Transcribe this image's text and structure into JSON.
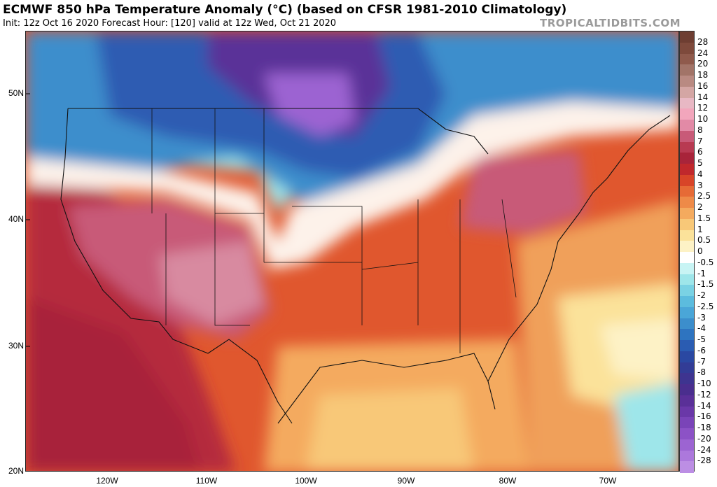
{
  "title": "ECMWF 850 hPa Temperature Anomaly (°C) (based on CFSR 1981-2010 Climatology)",
  "subtitle": "Init: 12z Oct 16 2020   Forecast Hour: [120]   valid at 12z Wed, Oct 21 2020",
  "brand": "TROPICALTIDBITS.COM",
  "lat_labels": [
    "50N",
    "40N",
    "30N",
    "20N"
  ],
  "lon_labels": [
    "120W",
    "110W",
    "100W",
    "90W",
    "80W",
    "70W"
  ],
  "colorbar": {
    "levels": [
      "28",
      "24",
      "20",
      "18",
      "16",
      "14",
      "12",
      "10",
      "8",
      "7",
      "6",
      "5",
      "4",
      "3",
      "2.5",
      "2",
      "1.5",
      "1",
      "0.5",
      "0",
      "-0.5",
      "-1",
      "-1.5",
      "-2",
      "-2.5",
      "-3",
      "-4",
      "-5",
      "-6",
      "-7",
      "-8",
      "-10",
      "-12",
      "-14",
      "-16",
      "-18",
      "-20",
      "-24",
      "-28"
    ],
    "colors": [
      "#7e4a3c",
      "#8f5a4c",
      "#a27468",
      "#b98a82",
      "#d4a6a4",
      "#e8b8c4",
      "#f2a6bc",
      "#e28aa6",
      "#c85a78",
      "#b83a52",
      "#a8243a",
      "#c0282c",
      "#d84428",
      "#e66a36",
      "#ee8a48",
      "#f4aa5e",
      "#f8c878",
      "#fbe29a",
      "#fdf2c6",
      "#ffffff",
      "#c8f4f4",
      "#9ee6ea",
      "#7ad2e4",
      "#5cbcde",
      "#4aa6d8",
      "#3c8ecc",
      "#2e74c0",
      "#2a5cb2",
      "#2a48a2",
      "#323c96",
      "#3e3490",
      "#4a2e8e",
      "#5a3098",
      "#6a38a8",
      "#7a44b8",
      "#8c52c6",
      "#9c64d2",
      "#ac78dc",
      "#bc8ee4"
    ]
  }
}
